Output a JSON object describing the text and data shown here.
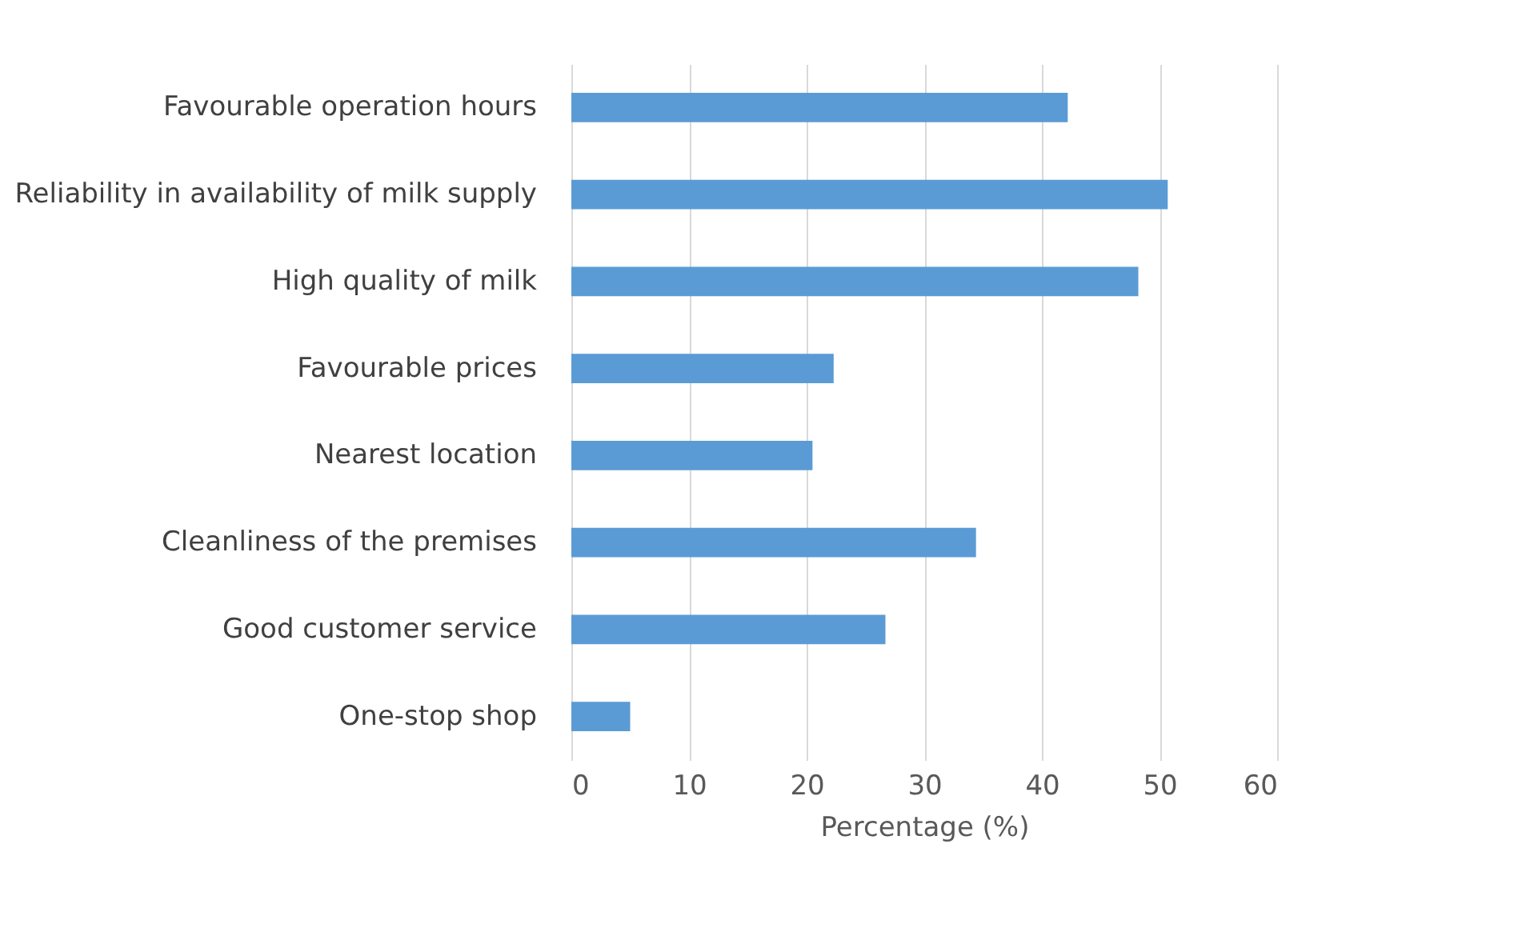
{
  "chart_data": {
    "type": "bar",
    "orientation": "horizontal",
    "xlabel": "Percentage (%)",
    "categories": [
      "Favourable operation hours",
      "Reliability in availability of milk supply",
      "High quality of milk",
      "Favourable prices",
      "Nearest location",
      "Cleanliness of the premises",
      "Good customer service",
      "One-stop shop"
    ],
    "values": [
      42.2,
      50.7,
      48.2,
      22.3,
      20.5,
      34.4,
      26.7,
      5.0
    ],
    "color": "#5b9bd5",
    "xlim": [
      0,
      60
    ],
    "xticks": [
      0,
      10,
      20,
      30,
      40,
      50,
      60
    ],
    "grid": "x"
  }
}
